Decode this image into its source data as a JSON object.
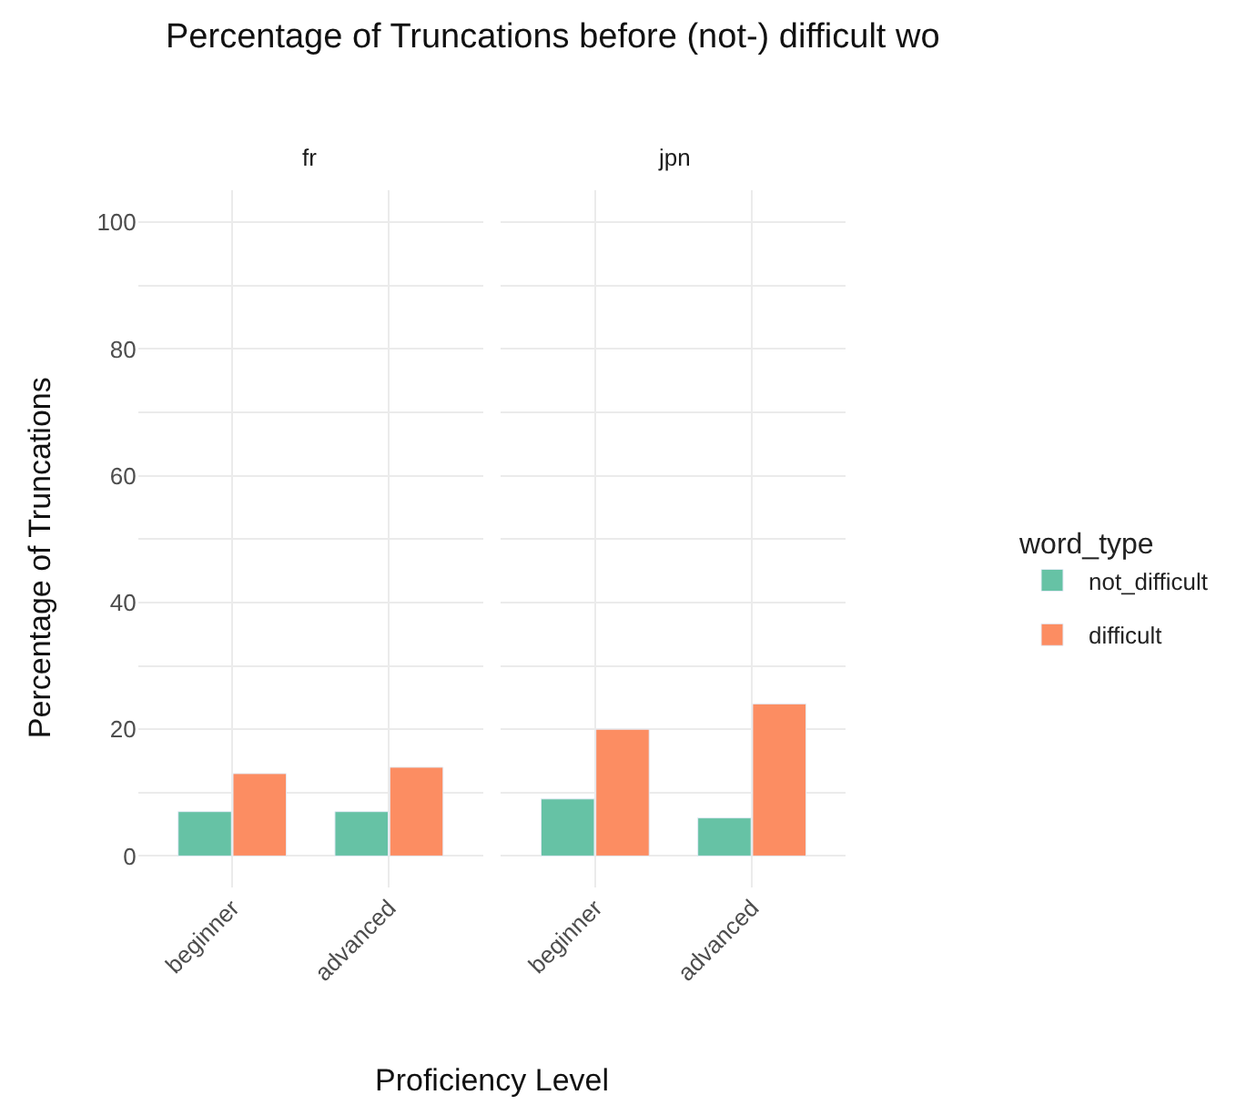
{
  "chart_data": [
    {
      "type": "bar",
      "title": "Percentage of Truncations before (not-) difficult wo",
      "subtitle": "fr",
      "legend_title": "word_type",
      "legend": "right",
      "xlabel": "Proficiency Level",
      "ylabel": "Percentage of Truncations",
      "categories": [
        "beginner",
        "advanced"
      ],
      "series": [
        {
          "name": "not_difficult",
          "color": "#66c2a5",
          "values": [
            7,
            7
          ]
        },
        {
          "name": "difficult",
          "color": "#fc8d62",
          "values": [
            13,
            14
          ]
        }
      ],
      "ylim": [
        -5,
        105
      ],
      "yticks": [
        0,
        {
          "value": 10,
          "label": null
        },
        20,
        {
          "value": 30,
          "label": null
        },
        40,
        {
          "value": 50,
          "label": null
        },
        60,
        {
          "value": 70,
          "label": null
        },
        80,
        {
          "value": 90,
          "label": null
        },
        100
      ],
      "grid": true
    },
    {
      "type": "bar",
      "subtitle": "jpn",
      "tick_labels": "x",
      "categories": [
        "beginner",
        "advanced"
      ],
      "series": [
        {
          "name": "not_difficult",
          "color": "#66c2a5",
          "values": [
            9,
            6
          ]
        },
        {
          "name": "difficult",
          "color": "#fc8d62",
          "values": [
            20,
            24
          ]
        }
      ],
      "ylim": [
        -5,
        105
      ],
      "yticks": [
        0,
        {
          "value": 10,
          "label": null
        },
        20,
        {
          "value": 30,
          "label": null
        },
        40,
        {
          "value": 50,
          "label": null
        },
        60,
        {
          "value": 70,
          "label": null
        },
        80,
        {
          "value": 90,
          "label": null
        },
        100
      ],
      "grid": true
    }
  ]
}
